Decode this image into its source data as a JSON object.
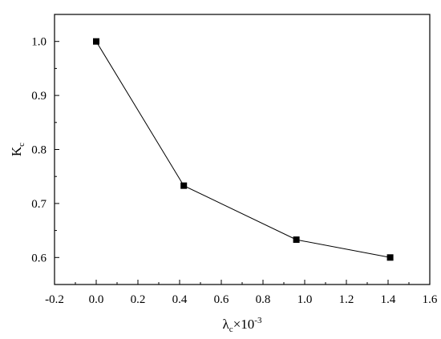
{
  "chart_data": {
    "type": "line",
    "title": "",
    "xlabel": {
      "main": "λ",
      "sub": "c",
      "suffix": "×10",
      "sup": "-3"
    },
    "ylabel": {
      "main": "K",
      "sub": "c"
    },
    "xlim": [
      -0.2,
      1.6
    ],
    "ylim": [
      0.55,
      1.05
    ],
    "x_ticks": [
      -0.2,
      0.0,
      0.2,
      0.4,
      0.6,
      0.8,
      1.0,
      1.2,
      1.4,
      1.6
    ],
    "x_tick_labels": [
      "-0.2",
      "0.0",
      "0.2",
      "0.4",
      "0.6",
      "0.8",
      "1.0",
      "1.2",
      "1.4",
      "1.6"
    ],
    "y_ticks": [
      0.6,
      0.7,
      0.8,
      0.9,
      1.0
    ],
    "y_tick_labels": [
      "0.6",
      "0.7",
      "0.8",
      "0.9",
      "1.0"
    ],
    "grid": false,
    "legend": "none",
    "series": [
      {
        "x": [
          0.0,
          0.42,
          0.96,
          1.41
        ],
        "y": [
          1.0,
          0.733,
          0.633,
          0.6
        ],
        "marker": "square",
        "color": "#000000"
      }
    ]
  }
}
